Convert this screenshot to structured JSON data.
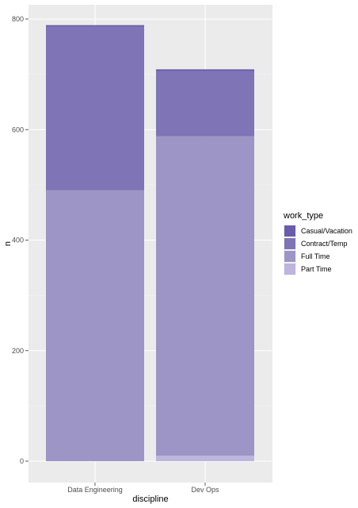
{
  "chart_data": {
    "type": "bar",
    "stacked": true,
    "xlabel": "discipline",
    "ylabel": "n",
    "categories": [
      "Data Engineering",
      "Dev Ops"
    ],
    "ylim": [
      0,
      842
    ],
    "yticks": [
      0,
      200,
      400,
      600,
      800
    ],
    "legend": {
      "title": "work_type",
      "position": "right"
    },
    "series": [
      {
        "name": "Casual/Vacation",
        "color": "#6a5bab",
        "values": [
          3,
          3
        ]
      },
      {
        "name": "Contract/Temp",
        "color": "#7e74b6",
        "values": [
          296,
          118
        ]
      },
      {
        "name": "Full Time",
        "color": "#9d95c5",
        "values": [
          490,
          578
        ]
      },
      {
        "name": "Part Time",
        "color": "#bcb5dd",
        "values": [
          0,
          10
        ]
      }
    ],
    "grid": true,
    "background": "#ebebeb"
  }
}
